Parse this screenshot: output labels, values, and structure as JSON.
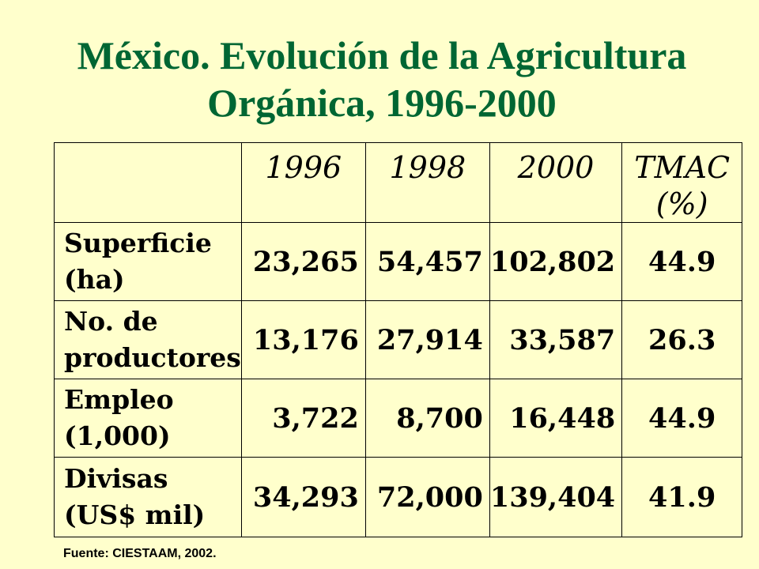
{
  "title": {
    "line1": "México. Evolución de la Agricultura",
    "line2": "Orgánica, 1996-2000"
  },
  "table": {
    "headers": [
      "1996",
      "1998",
      "2000"
    ],
    "tmac_header": {
      "line1": "TMAC",
      "line2": "(%)"
    },
    "rows": [
      {
        "label_line1": "Superficie",
        "label_line2": "(ha)",
        "v1996": "23,265",
        "v1998": "54,457",
        "v2000": "102,802",
        "tmac": "44.9"
      },
      {
        "label_line1": "No. de",
        "label_line2": "productores",
        "v1996": "13,176",
        "v1998": "27,914",
        "v2000": "33,587",
        "tmac": "26.3"
      },
      {
        "label_line1": "Empleo",
        "label_line2": "(1,000)",
        "v1996": "3,722",
        "v1998": "8,700",
        "v2000": "16,448",
        "tmac": "44.9"
      },
      {
        "label_line1": "Divisas",
        "label_line2": "(US$ mil)",
        "v1996": "34,293",
        "v1998": "72,000",
        "v2000": "139,404",
        "tmac": "41.9"
      }
    ]
  },
  "source": "Fuente: CIESTAAM, 2002.",
  "colors": {
    "background": "#ffffcc",
    "title": "#006633"
  }
}
